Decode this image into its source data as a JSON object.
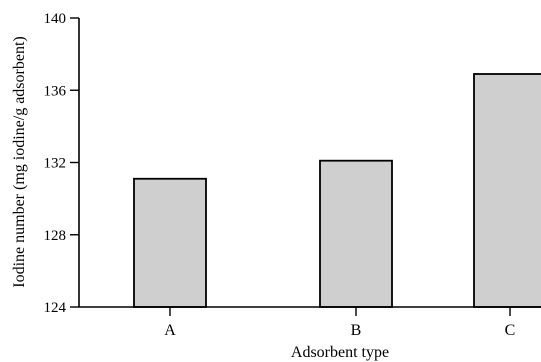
{
  "chart_data": {
    "type": "bar",
    "categories": [
      "A",
      "B",
      "C"
    ],
    "values": [
      131.1,
      132.1,
      136.9
    ],
    "xlabel": "Adsorbent type",
    "ylabel": "Iodine number (mg iodine/g adsorbent)",
    "ylim": [
      124,
      140
    ],
    "yticks": [
      "124",
      "128",
      "132",
      "136",
      "140"
    ],
    "grid": false,
    "colors": {
      "bar_fill": "#cfcfcf",
      "bar_stroke": "#000000"
    }
  }
}
